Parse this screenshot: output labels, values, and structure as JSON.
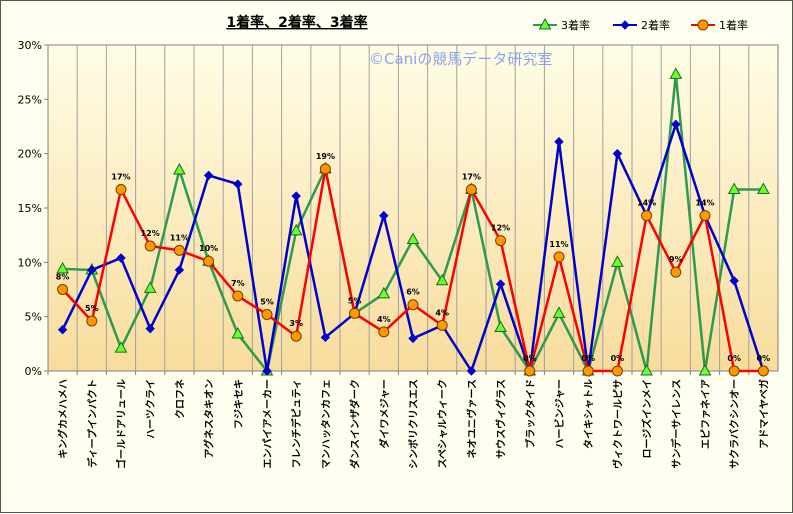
{
  "chart_data": {
    "type": "line",
    "title": "1着率、2着率、3着率",
    "watermark": "©Caniの競馬データ研究室",
    "ylim": [
      0,
      30
    ],
    "yticks": [
      "0%",
      "5%",
      "10%",
      "15%",
      "20%",
      "25%",
      "30%"
    ],
    "grid": "vertical",
    "legend_position": "top-right",
    "categories": [
      "キングカメハメハ",
      "ディープインパクト",
      "ゴールドアリュール",
      "ハーツクライ",
      "クロフネ",
      "アグネスタキオン",
      "フジキセキ",
      "エンパイアメーカー",
      "フレンチデピュティ",
      "マンハッタンカフェ",
      "ダンスインザダーク",
      "ダイワメジャー",
      "シンボリクリスエス",
      "スペシャルウィーク",
      "ネオユニヴァース",
      "サウスヴィグラス",
      "ブラックタイド",
      "ハービンジャー",
      "タイキシャトル",
      "ヴィクトワールピサ",
      "ロージズインメイ",
      "サンデーサイレンス",
      "エピファネイア",
      "サクラバクシンオー",
      "アドマイヤベガ"
    ],
    "series": [
      {
        "name": "3着率",
        "color": "#2e9a4e",
        "marker": "triangle",
        "marker_fill": "#66ff33",
        "values": [
          9.4,
          9.3,
          2.1,
          7.6,
          18.5,
          10.1,
          3.4,
          0,
          12.9,
          18.6,
          5.3,
          7.1,
          12.1,
          8.3,
          16.7,
          4.0,
          0,
          5.3,
          0,
          10.0,
          0,
          27.3,
          0,
          16.7,
          16.7
        ]
      },
      {
        "name": "2着率",
        "color": "#0000cc",
        "marker": "diamond",
        "marker_fill": "#0000cc",
        "values": [
          3.8,
          9.3,
          10.4,
          3.9,
          9.3,
          18.0,
          17.2,
          0,
          16.1,
          3.1,
          5.3,
          14.3,
          3.0,
          4.2,
          0,
          8.0,
          0,
          21.1,
          0,
          20.0,
          14.3,
          22.7,
          14.3,
          8.3,
          0
        ]
      },
      {
        "name": "1着率",
        "color": "#ff0000",
        "marker": "circle",
        "marker_fill": "#ff9900",
        "values": [
          7.5,
          4.6,
          16.7,
          11.5,
          11.1,
          10.1,
          6.9,
          5.2,
          3.2,
          18.6,
          5.3,
          3.6,
          6.1,
          4.2,
          16.7,
          12.0,
          0,
          10.5,
          0,
          0,
          14.3,
          9.1,
          14.3,
          0,
          0
        ],
        "labels": [
          "8%",
          "5%",
          "17%",
          "12%",
          "11%",
          "10%",
          "7%",
          "5%",
          "3%",
          "19%",
          "5%",
          "4%",
          "6%",
          "4%",
          "17%",
          "12%",
          "0%",
          "11%",
          "0%",
          "0%",
          "14%",
          "9%",
          "14%",
          "0%",
          "0%"
        ]
      }
    ]
  }
}
